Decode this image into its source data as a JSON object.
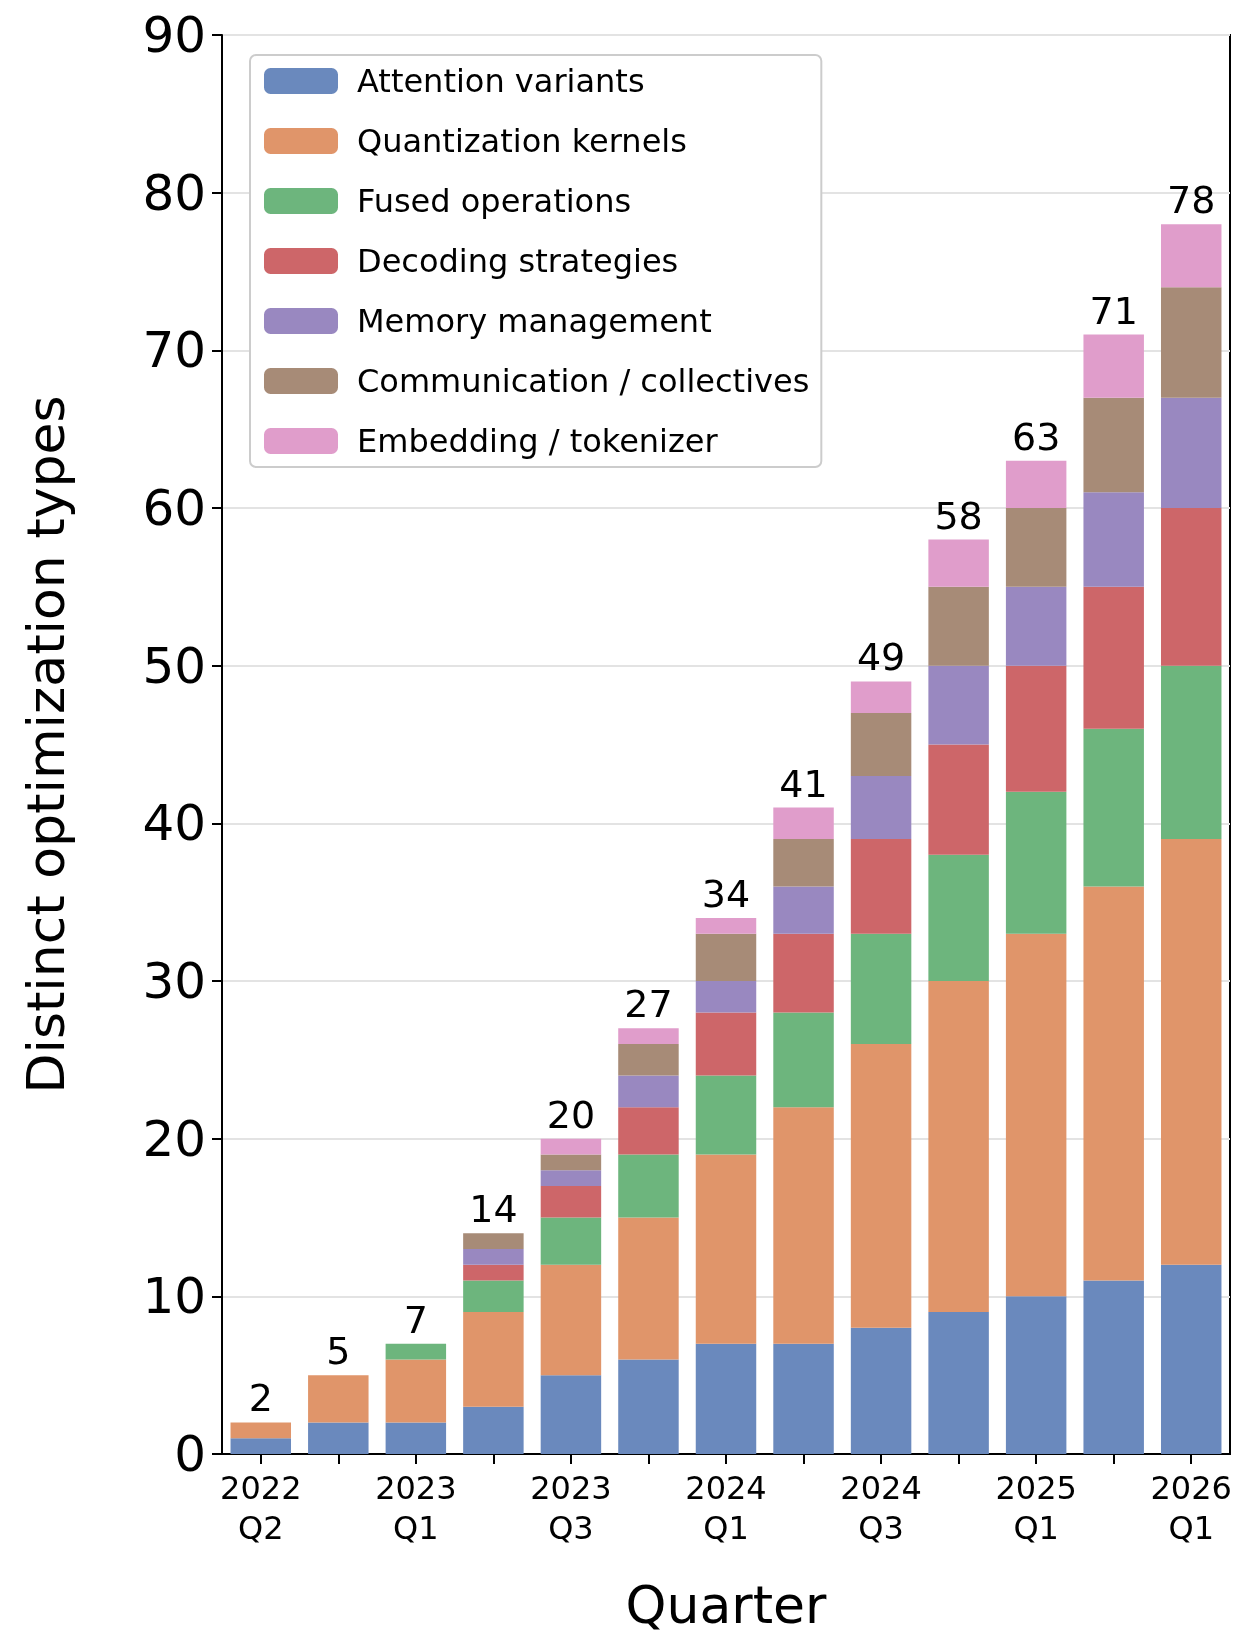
{
  "chart_data": {
    "type": "bar",
    "stacked": true,
    "xlabel": "Quarter",
    "ylabel": "Distinct optimization types",
    "categories": [
      "2022\nQ2",
      null,
      "2023\nQ1",
      null,
      "2023\nQ3",
      null,
      "2024\nQ1",
      null,
      "2024\nQ3",
      null,
      "2025\nQ1",
      null,
      "2026\nQ1"
    ],
    "series": [
      {
        "name": "Attention variants",
        "color": "#6a89bd",
        "values": [
          1,
          2,
          2,
          3,
          5,
          6,
          7,
          7,
          8,
          9,
          10,
          11,
          12
        ]
      },
      {
        "name": "Quantization kernels",
        "color": "#e0956a",
        "values": [
          1,
          3,
          4,
          6,
          7,
          9,
          12,
          15,
          18,
          21,
          23,
          25,
          27
        ]
      },
      {
        "name": "Fused operations",
        "color": "#6db57d",
        "values": [
          0,
          0,
          1,
          2,
          3,
          4,
          5,
          6,
          7,
          8,
          9,
          10,
          11
        ]
      },
      {
        "name": "Decoding strategies",
        "color": "#cd6669",
        "values": [
          0,
          0,
          0,
          1,
          2,
          3,
          4,
          5,
          6,
          7,
          8,
          9,
          10
        ]
      },
      {
        "name": "Memory management",
        "color": "#9988c0",
        "values": [
          0,
          0,
          0,
          1,
          1,
          2,
          2,
          3,
          4,
          5,
          5,
          6,
          7
        ]
      },
      {
        "name": "Communication / collectives",
        "color": "#a78b77",
        "values": [
          0,
          0,
          0,
          1,
          1,
          2,
          3,
          3,
          4,
          5,
          5,
          6,
          7
        ]
      },
      {
        "name": "Embedding / tokenizer",
        "color": "#e09dcb",
        "values": [
          0,
          0,
          0,
          0,
          1,
          1,
          1,
          2,
          2,
          3,
          3,
          4,
          4
        ]
      }
    ],
    "totals": [
      "2",
      "5",
      "7",
      "14",
      "20",
      "27",
      "34",
      "41",
      "49",
      "58",
      "63",
      "71",
      "78"
    ],
    "ylim": [
      0,
      90
    ],
    "yticks": [
      0,
      10,
      20,
      30,
      40,
      50,
      60,
      70,
      80,
      90
    ],
    "grid": "y",
    "legend": "top left"
  }
}
